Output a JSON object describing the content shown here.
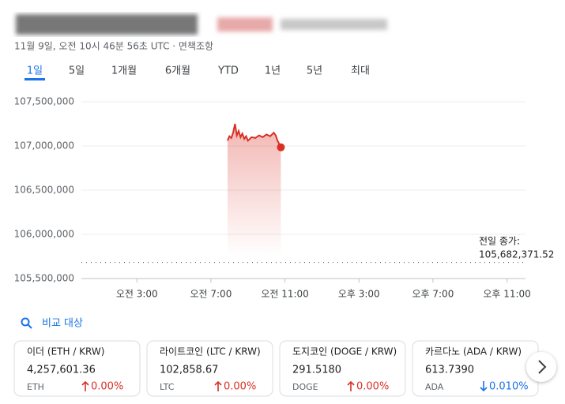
{
  "header": {
    "timestamp": "11월 9일, 오전 10시 46분 56초 UTC · 면책조항"
  },
  "tabs": [
    "1일",
    "5일",
    "1개월",
    "6개월",
    "YTD",
    "1년",
    "5년",
    "최대"
  ],
  "selected_tab": 0,
  "chart_data": {
    "type": "line",
    "color": "#d93025",
    "grid": true,
    "x": [
      7.9,
      8.0,
      8.1,
      8.2,
      8.3,
      8.4,
      8.5,
      8.6,
      8.7,
      8.8,
      8.9,
      9.0,
      9.2,
      9.4,
      9.6,
      9.8,
      10.0,
      10.2,
      10.4,
      10.5,
      10.6,
      10.7,
      10.78
    ],
    "values": [
      107060000,
      107110000,
      107090000,
      107150000,
      107250000,
      107120000,
      107170000,
      107100000,
      107140000,
      107080000,
      107110000,
      107060000,
      107100000,
      107090000,
      107120000,
      107100000,
      107130000,
      107110000,
      107150000,
      107120000,
      107060000,
      107020000,
      106985000
    ],
    "xlim": [
      0,
      24
    ],
    "xticks": [
      {
        "value": 3,
        "label": "오전 3:00"
      },
      {
        "value": 7,
        "label": "오전 7:00"
      },
      {
        "value": 11,
        "label": "오전 11:00"
      },
      {
        "value": 15,
        "label": "오후 3:00"
      },
      {
        "value": 19,
        "label": "오후 7:00"
      },
      {
        "value": 23,
        "label": "오후 11:00"
      }
    ],
    "ylim": [
      105500000,
      107500000
    ],
    "yticks": [
      {
        "value": 105500000,
        "label": "105,500,000"
      },
      {
        "value": 106000000,
        "label": "106,000,000"
      },
      {
        "value": 106500000,
        "label": "106,500,000"
      },
      {
        "value": 107000000,
        "label": "107,000,000"
      },
      {
        "value": 107500000,
        "label": "107,500,000"
      }
    ],
    "previous_close": {
      "label": "전일 종가:",
      "value": 105682371.52,
      "value_label": "105,682,371.52"
    }
  },
  "compare": {
    "title": "비교 대상",
    "cards": [
      {
        "name": "이더 (ETH / KRW)",
        "price": "4,257,601.36",
        "symbol": "ETH",
        "change": "0.00%",
        "direction": "up"
      },
      {
        "name": "라이트코인 (LTC / KRW)",
        "price": "102,858.67",
        "symbol": "LTC",
        "change": "0.00%",
        "direction": "up"
      },
      {
        "name": "도지코인 (DOGE / KRW)",
        "price": "291.5180",
        "symbol": "DOGE",
        "change": "0.00%",
        "direction": "up"
      },
      {
        "name": "카르다노 (ADA / KRW)",
        "price": "613.7390",
        "symbol": "ADA",
        "change": "0.010%",
        "direction": "down"
      }
    ]
  }
}
